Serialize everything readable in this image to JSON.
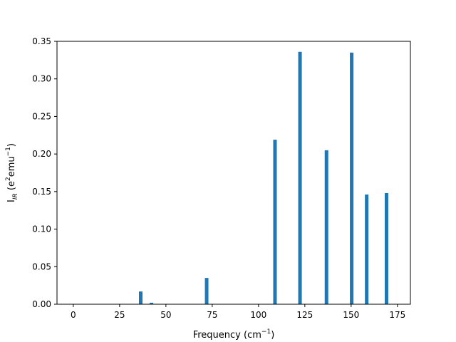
{
  "chart_data": {
    "type": "bar",
    "title": "",
    "xlabel": "Frequency (cm⁻¹)",
    "ylabel": "I_IR (e²emu⁻¹)",
    "ylabel_parts": {
      "main": "I",
      "sub": "IR",
      "open": " (e",
      "sup1": "2",
      "mid": "emu",
      "sup2": "−1",
      "close": ")"
    },
    "xlabel_parts": {
      "main": "Frequency (cm",
      "sup": "−1",
      "close": ")"
    },
    "xlim": [
      -8.8,
      182
    ],
    "ylim": [
      0,
      0.35
    ],
    "xticks": [
      0,
      25,
      50,
      75,
      100,
      125,
      150,
      175
    ],
    "yticks": [
      0.0,
      0.05,
      0.1,
      0.15,
      0.2,
      0.25,
      0.3,
      0.35
    ],
    "ytick_labels": [
      "0.00",
      "0.05",
      "0.10",
      "0.15",
      "0.20",
      "0.25",
      "0.30",
      "0.35"
    ],
    "bar_color": "#1f77b4",
    "grid": false,
    "bars": [
      {
        "x": 36.4,
        "y": 0.017
      },
      {
        "x": 42.2,
        "y": 0.002
      },
      {
        "x": 72.0,
        "y": 0.035
      },
      {
        "x": 108.9,
        "y": 0.219
      },
      {
        "x": 122.4,
        "y": 0.336
      },
      {
        "x": 136.7,
        "y": 0.205
      },
      {
        "x": 150.3,
        "y": 0.335
      },
      {
        "x": 158.4,
        "y": 0.146
      },
      {
        "x": 169.1,
        "y": 0.148
      }
    ]
  }
}
